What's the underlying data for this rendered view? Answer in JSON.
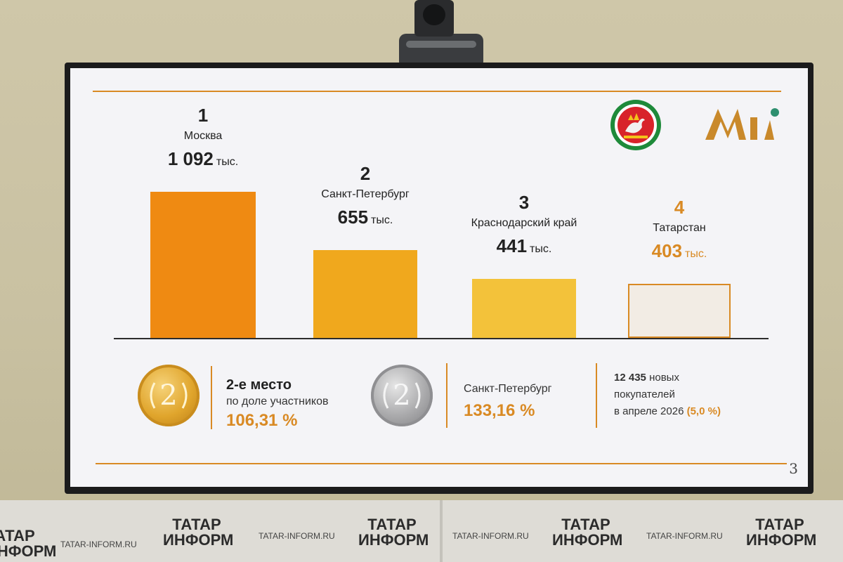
{
  "slide": {
    "page_number": "3",
    "ranking": [
      {
        "rank": "1",
        "region": "Москва",
        "value": "1 092",
        "unit": "тыс.",
        "color": "#ef8a12",
        "highlight": false
      },
      {
        "rank": "2",
        "region": "Санкт-Петербург",
        "value": "655",
        "unit": "тыс.",
        "color": "#f0a81d",
        "highlight": false
      },
      {
        "rank": "3",
        "region": "Краснодарский край",
        "value": "441",
        "unit": "тыс.",
        "color": "#f3c23a",
        "highlight": false
      },
      {
        "rank": "4",
        "region": "Татарстан",
        "value": "403",
        "unit": "тыс.",
        "color": "#f2ece4",
        "highlight": true
      }
    ],
    "stats": {
      "medal_gold_number": "2",
      "medal_silver_number": "2",
      "place_title": "2-е место",
      "place_subtitle": "по доле участников",
      "place_value": "106,31 %",
      "spb_label": "Санкт-Петербург",
      "spb_value": "133,16 %",
      "buyers_count": "12 435",
      "buyers_line1_rest": "новых",
      "buyers_line2": "покупателей",
      "buyers_line3": "в апреле 2026",
      "buyers_pct": "(5,0 %)"
    }
  },
  "backdrop": {
    "brand_line1": "ТАТАР",
    "brand_line2": "ИНФОРМ",
    "site": "TATAR-INFORM.RU"
  },
  "colors": {
    "accent": "#d98a24",
    "gold": "#e0a52c",
    "silver": "#a9a9ab"
  }
}
